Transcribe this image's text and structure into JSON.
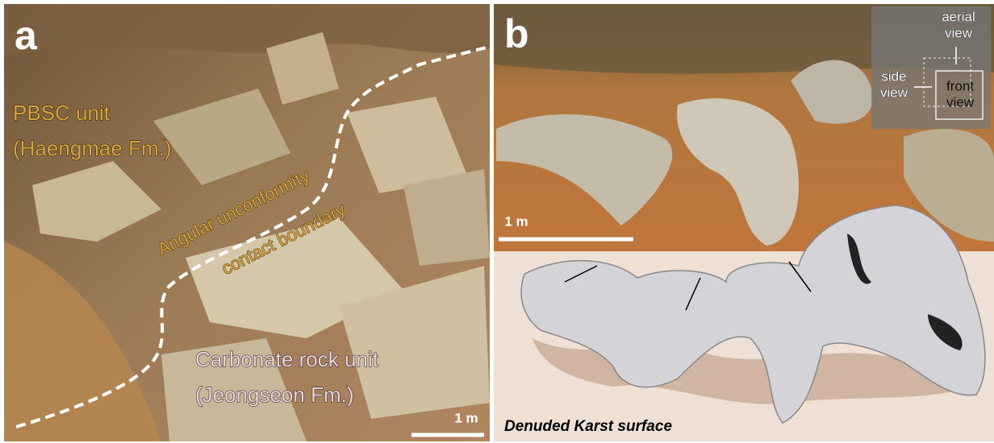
{
  "panel_a": {
    "label": "a",
    "unit_upper": [
      "PBSC unit",
      "(Haengmae Fm.)"
    ],
    "boundary": [
      "Angular unconformity",
      "contact boundary"
    ],
    "unit_lower": [
      "Carbonate rock unit",
      "(Jeongseon Fm.)"
    ],
    "scale_bar": "1 m"
  },
  "panel_b": {
    "label": "b",
    "inset": {
      "aerial": [
        "aerial",
        "view"
      ],
      "side": [
        "side",
        "view"
      ],
      "front": [
        "front",
        "view"
      ]
    },
    "scale_bar": "1 m",
    "caption": "Denuded Karst surface"
  }
}
